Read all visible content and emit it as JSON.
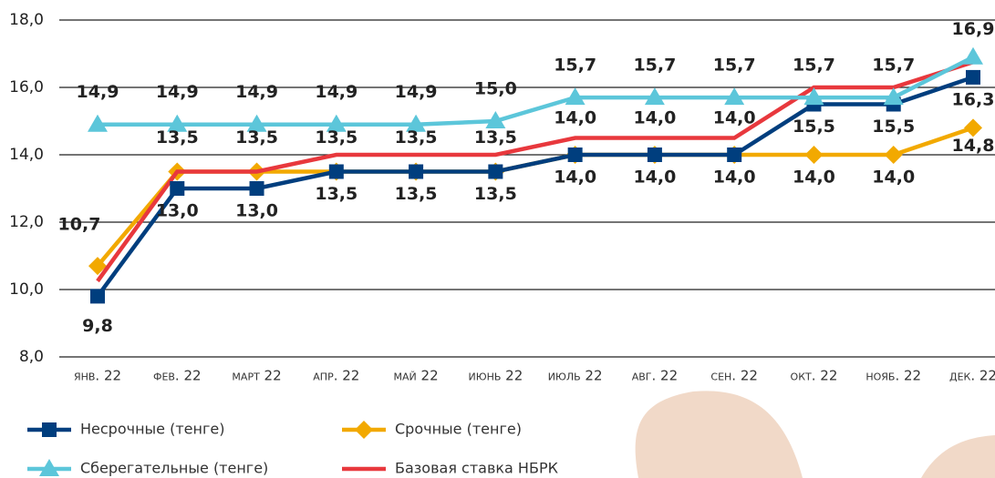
{
  "chart_data": {
    "type": "line",
    "categories": [
      "янв. 22",
      "фев. 22",
      "март 22",
      "апр. 22",
      "май 22",
      "июнь 22",
      "июль 22",
      "авг. 22",
      "сен. 22",
      "окт. 22",
      "нояб. 22",
      "дек. 22"
    ],
    "ylim": [
      8,
      18
    ],
    "yticks": [
      {
        "value": 8,
        "label": "8,0"
      },
      {
        "value": 10,
        "label": "10,0"
      },
      {
        "value": 12,
        "label": "12,0"
      },
      {
        "value": 14,
        "label": "14,0"
      },
      {
        "value": 16,
        "label": "16,0"
      },
      {
        "value": 18,
        "label": "18,0"
      }
    ],
    "grid": true,
    "series": [
      {
        "name": "Несрочные (тенге)",
        "color": "#003e7e",
        "marker": "square",
        "values": [
          9.8,
          13.0,
          13.0,
          13.5,
          13.5,
          13.5,
          14.0,
          14.0,
          14.0,
          15.5,
          15.5,
          16.3
        ],
        "value_labels": [
          "9,8",
          "13,0",
          "13,0",
          "13,5",
          "13,5",
          "13,5",
          "14,0",
          "14,0",
          "14,0",
          "15,5",
          "15,5",
          "16,3"
        ]
      },
      {
        "name": "Срочные (тенге)",
        "color": "#f2a900",
        "marker": "diamond",
        "values": [
          10.7,
          13.5,
          13.5,
          13.5,
          13.5,
          13.5,
          14.0,
          14.0,
          14.0,
          14.0,
          14.0,
          14.8
        ],
        "value_labels": [
          "10,7",
          "13,5",
          "13,5",
          "13,5",
          "13,5",
          "13,5",
          "14,0",
          "14,0",
          "14,0",
          "14,0",
          "14,0",
          "14,8"
        ]
      },
      {
        "name": "Сберегательные (тенге)",
        "color": "#5cc6da",
        "marker": "triangle",
        "values": [
          14.9,
          14.9,
          14.9,
          14.9,
          14.9,
          15.0,
          15.7,
          15.7,
          15.7,
          15.7,
          15.7,
          16.9
        ],
        "value_labels": [
          "14,9",
          "14,9",
          "14,9",
          "14,9",
          "14,9",
          "15,0",
          "15,7",
          "15,7",
          "15,7",
          "15,7",
          "15,7",
          "16,9"
        ]
      },
      {
        "name": "Базовая ставка НБРК",
        "color": "#e8383d",
        "marker": "none",
        "values": [
          10.25,
          13.5,
          13.5,
          14.0,
          14.0,
          14.0,
          14.5,
          14.5,
          14.5,
          16.0,
          16.0,
          16.75
        ]
      }
    ]
  }
}
